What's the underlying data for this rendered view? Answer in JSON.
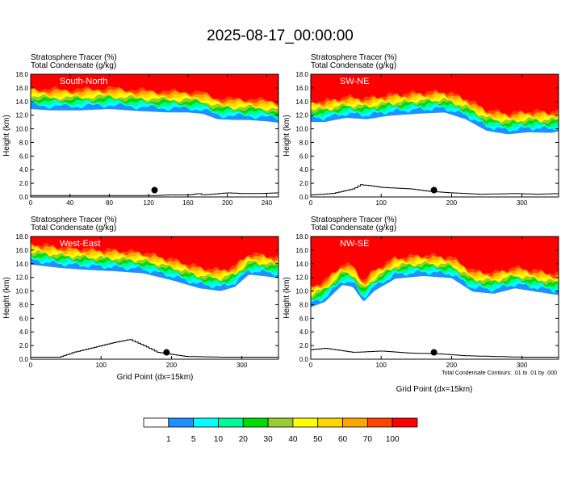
{
  "title": "2025-08-17_00:00:00",
  "field1": "Stratosphere Tracer   (%)",
  "field2": "Total Condensate   (g/kg)",
  "y_label": "Height (km)",
  "x_label": "Grid Point (dx=15km)",
  "contour_note": "Total Condensate Contours: .01 to .01 by .000",
  "colorbar": {
    "levels": [
      "1",
      "5",
      "10",
      "20",
      "30",
      "40",
      "50",
      "60",
      "70",
      "100"
    ],
    "colors": [
      "#ffffff",
      "#1e90ff",
      "#00ffff",
      "#00fa9a",
      "#00dd00",
      "#9acd32",
      "#ffff00",
      "#ffd700",
      "#ffa500",
      "#ff4500",
      "#ff0000"
    ]
  },
  "chart_data": [
    {
      "type": "heatmap",
      "panel_label": "South-North",
      "xlim": [
        0,
        252
      ],
      "ylim": [
        0,
        18
      ],
      "xticks": [
        0,
        40,
        80,
        120,
        160,
        200,
        240
      ],
      "yticks": [
        "0.0",
        "2.0",
        "4.0",
        "6.0",
        "8.0",
        "10.0",
        "12.0",
        "14.0",
        "16.0",
        "18.0"
      ],
      "tracer_base_km": [
        [
          0,
          13.5
        ],
        [
          20,
          13.3
        ],
        [
          50,
          13.3
        ],
        [
          80,
          13.5
        ],
        [
          110,
          13.2
        ],
        [
          140,
          13.0
        ],
        [
          160,
          13.0
        ],
        [
          175,
          12.8
        ],
        [
          190,
          12.0
        ],
        [
          205,
          11.9
        ],
        [
          220,
          11.9
        ],
        [
          240,
          11.7
        ],
        [
          252,
          11.5
        ]
      ],
      "terrain_km": [
        [
          0,
          0.2
        ],
        [
          125,
          0.2
        ],
        [
          140,
          0.3
        ],
        [
          160,
          0.3
        ],
        [
          170,
          0.5
        ],
        [
          175,
          0.3
        ],
        [
          200,
          0.6
        ],
        [
          215,
          0.5
        ],
        [
          230,
          0.5
        ],
        [
          252,
          0.6
        ]
      ],
      "marker": [
        126,
        1.0
      ]
    },
    {
      "type": "heatmap",
      "panel_label": "SW-NE",
      "xlim": [
        0,
        352
      ],
      "ylim": [
        0,
        18
      ],
      "xticks": [
        0,
        100,
        200,
        300
      ],
      "yticks": [
        "0.0",
        "2.0",
        "4.0",
        "6.0",
        "8.0",
        "10.0",
        "12.0",
        "14.0",
        "16.0",
        "18.0"
      ],
      "tracer_base_km": [
        [
          0,
          11.6
        ],
        [
          20,
          11.6
        ],
        [
          50,
          12.2
        ],
        [
          80,
          12.0
        ],
        [
          110,
          12.5
        ],
        [
          150,
          12.8
        ],
        [
          190,
          13.0
        ],
        [
          220,
          12.0
        ],
        [
          250,
          10.3
        ],
        [
          280,
          9.8
        ],
        [
          310,
          10.1
        ],
        [
          340,
          10.0
        ],
        [
          352,
          10.2
        ]
      ],
      "terrain_km": [
        [
          0,
          0.3
        ],
        [
          30,
          0.5
        ],
        [
          60,
          1.2
        ],
        [
          70,
          1.8
        ],
        [
          80,
          1.7
        ],
        [
          100,
          1.4
        ],
        [
          140,
          1.2
        ],
        [
          170,
          0.8
        ],
        [
          200,
          0.6
        ],
        [
          240,
          0.4
        ],
        [
          290,
          0.5
        ],
        [
          320,
          0.4
        ],
        [
          352,
          0.5
        ]
      ],
      "marker": [
        175,
        1.0
      ]
    },
    {
      "type": "heatmap",
      "panel_label": "West-East",
      "xlim": [
        0,
        352
      ],
      "ylim": [
        0,
        18
      ],
      "xticks": [
        0,
        100,
        200,
        300
      ],
      "yticks": [
        "0.0",
        "2.0",
        "4.0",
        "6.0",
        "8.0",
        "10.0",
        "12.0",
        "14.0",
        "16.0",
        "18.0"
      ],
      "tracer_base_km": [
        [
          0,
          14.5
        ],
        [
          40,
          14.0
        ],
        [
          80,
          13.7
        ],
        [
          120,
          13.5
        ],
        [
          160,
          13.2
        ],
        [
          200,
          12.2
        ],
        [
          240,
          11.0
        ],
        [
          270,
          10.6
        ],
        [
          290,
          11.2
        ],
        [
          310,
          13.0
        ],
        [
          330,
          12.8
        ],
        [
          352,
          12.5
        ]
      ],
      "terrain_km": [
        [
          0,
          0.3
        ],
        [
          40,
          0.3
        ],
        [
          60,
          1.0
        ],
        [
          80,
          1.5
        ],
        [
          100,
          2.0
        ],
        [
          120,
          2.5
        ],
        [
          140,
          2.9
        ],
        [
          160,
          2.0
        ],
        [
          180,
          1.0
        ],
        [
          220,
          0.4
        ],
        [
          270,
          0.3
        ],
        [
          310,
          0.3
        ],
        [
          352,
          0.3
        ]
      ],
      "marker": [
        193,
        1.0
      ]
    },
    {
      "type": "heatmap",
      "panel_label": "NW-SE",
      "xlim": [
        0,
        352
      ],
      "ylim": [
        0,
        18
      ],
      "xticks": [
        0,
        100,
        200,
        300
      ],
      "yticks": [
        "0.0",
        "2.0",
        "4.0",
        "6.0",
        "8.0",
        "10.0",
        "12.0",
        "14.0",
        "16.0",
        "18.0"
      ],
      "tracer_base_km": [
        [
          0,
          8.2
        ],
        [
          20,
          9.0
        ],
        [
          45,
          11.5
        ],
        [
          60,
          11.2
        ],
        [
          75,
          9.0
        ],
        [
          90,
          10.6
        ],
        [
          120,
          12.4
        ],
        [
          160,
          12.8
        ],
        [
          200,
          12.5
        ],
        [
          230,
          10.5
        ],
        [
          260,
          10.2
        ],
        [
          290,
          11.0
        ],
        [
          320,
          10.5
        ],
        [
          352,
          10.0
        ]
      ],
      "terrain_km": [
        [
          0,
          1.4
        ],
        [
          20,
          1.6
        ],
        [
          60,
          1.0
        ],
        [
          100,
          1.2
        ],
        [
          140,
          0.9
        ],
        [
          180,
          0.8
        ],
        [
          220,
          0.5
        ],
        [
          260,
          0.4
        ],
        [
          300,
          0.3
        ],
        [
          352,
          0.3
        ]
      ],
      "marker": [
        175,
        1.0
      ]
    }
  ]
}
